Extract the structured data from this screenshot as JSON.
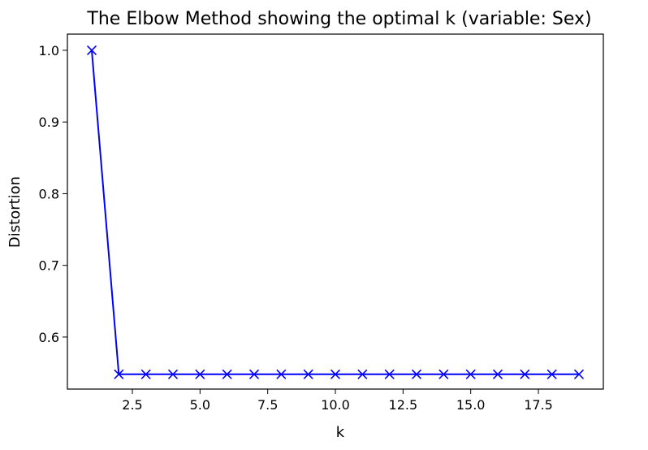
{
  "chart_data": {
    "type": "line",
    "title": "The Elbow Method showing the optimal k (variable: Sex)",
    "xlabel": "k",
    "ylabel": "Distortion",
    "x": [
      1,
      2,
      3,
      4,
      5,
      6,
      7,
      8,
      9,
      10,
      11,
      12,
      13,
      14,
      15,
      16,
      17,
      18,
      19
    ],
    "series": [
      {
        "name": "",
        "color": "#0000ff",
        "marker": "x",
        "values": [
          1.0,
          0.548,
          0.548,
          0.548,
          0.548,
          0.548,
          0.548,
          0.548,
          0.548,
          0.548,
          0.548,
          0.548,
          0.548,
          0.548,
          0.548,
          0.548,
          0.548,
          0.548,
          0.548
        ]
      }
    ],
    "xlim": [
      0.1,
      19.9
    ],
    "ylim": [
      0.5274,
      1.0226
    ],
    "xticks": [
      2.5,
      5.0,
      7.5,
      10.0,
      12.5,
      15.0,
      17.5
    ],
    "xtick_labels": [
      "2.5",
      "5.0",
      "7.5",
      "10.0",
      "12.5",
      "15.0",
      "17.5"
    ],
    "yticks": [
      0.6,
      0.7,
      0.8,
      0.9,
      1.0
    ],
    "ytick_labels": [
      "0.6",
      "0.7",
      "0.8",
      "0.9",
      "1.0"
    ],
    "grid": false,
    "legend": "none"
  }
}
